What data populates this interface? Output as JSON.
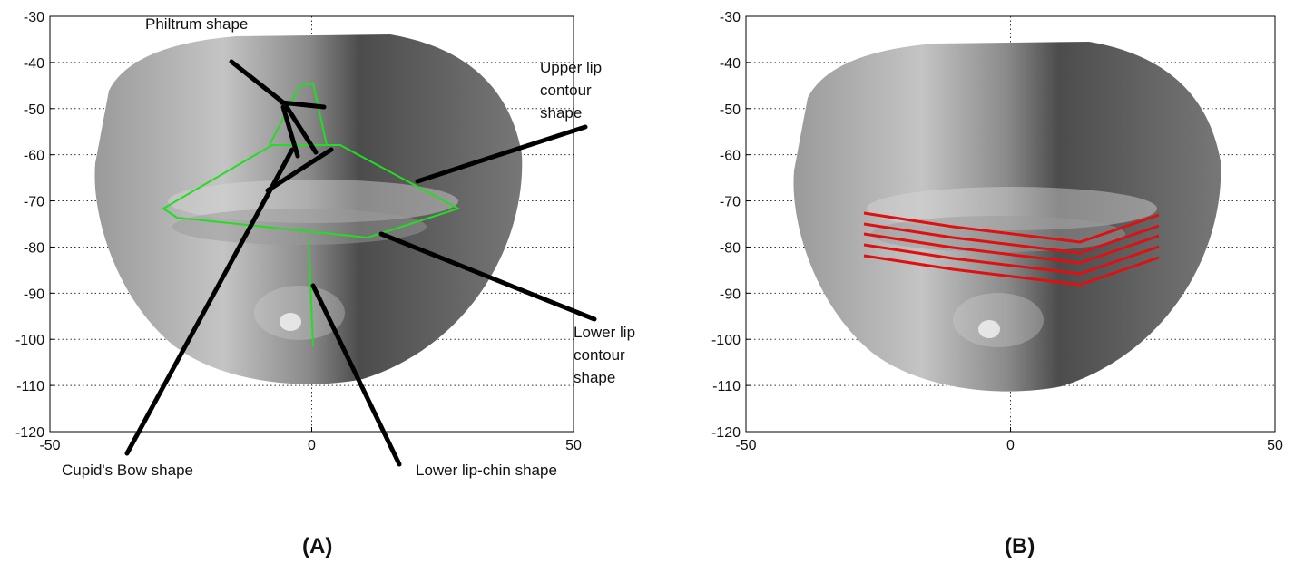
{
  "chart_data": [
    {
      "type": "image",
      "xlim": [
        -50,
        50
      ],
      "ylim": [
        -120,
        -30
      ],
      "xticks": [
        -50,
        0,
        50
      ],
      "yticks": [
        -30,
        -40,
        -50,
        -60,
        -70,
        -80,
        -90,
        -100,
        -110,
        -120
      ],
      "grid": true,
      "annotations": [
        [
          "Philtrum shape"
        ],
        [
          "Upper lip",
          "contour",
          "shape"
        ],
        [
          "Lower lip",
          "contour",
          "shape"
        ],
        [
          "Cupid's Bow shape"
        ],
        [
          "Lower lip-chin shape"
        ]
      ],
      "panel_label": "(A)"
    },
    {
      "type": "image",
      "xlim": [
        -50,
        50
      ],
      "ylim": [
        -120,
        -30
      ],
      "xticks": [
        -50,
        0,
        50
      ],
      "yticks": [
        -30,
        -40,
        -50,
        -60,
        -70,
        -80,
        -90,
        -100,
        -110,
        -120
      ],
      "grid": true,
      "panel_label": "(B)"
    }
  ]
}
